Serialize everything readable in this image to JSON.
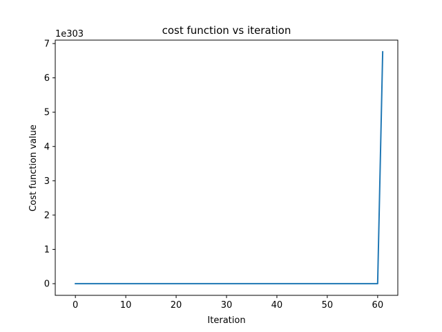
{
  "chart_data": {
    "type": "line",
    "title": "cost function vs iteration",
    "xlabel": "Iteration",
    "ylabel": "Cost function value",
    "y_offset_label": "1e303",
    "xlim": [
      -4,
      64
    ],
    "ylim": [
      -0.34,
      7.1
    ],
    "grid": false,
    "x_ticks": [
      0,
      10,
      20,
      30,
      40,
      50,
      60
    ],
    "x_tick_labels": [
      "0",
      "10",
      "20",
      "30",
      "40",
      "50",
      "60"
    ],
    "y_ticks": [
      0,
      1,
      2,
      3,
      4,
      5,
      6,
      7
    ],
    "y_tick_labels": [
      "0",
      "1",
      "2",
      "3",
      "4",
      "5",
      "6",
      "7"
    ],
    "line_color": "#1f77b4",
    "series": [
      {
        "x": [
          0,
          60,
          61
        ],
        "y": [
          0,
          0,
          6.76
        ]
      }
    ]
  }
}
